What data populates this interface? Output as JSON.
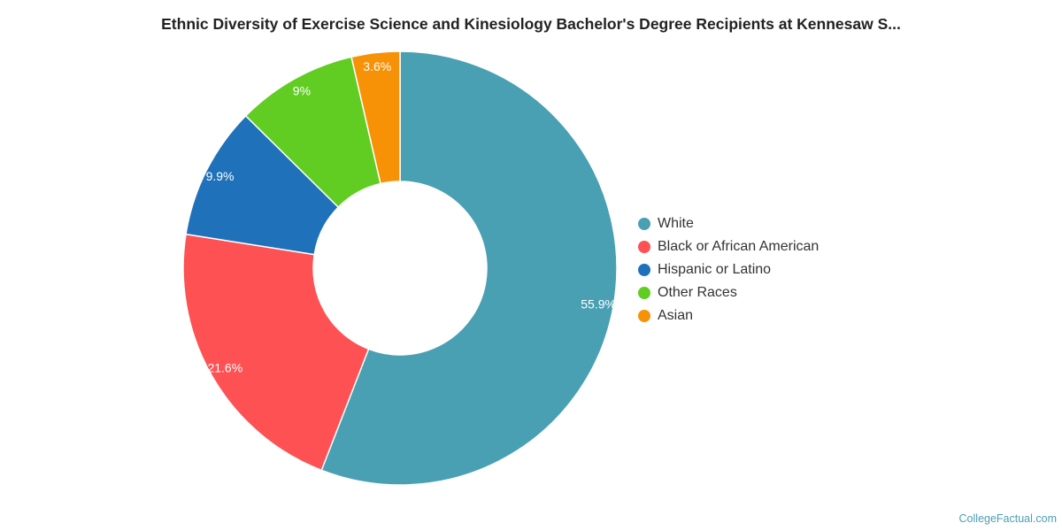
{
  "chart_data": {
    "type": "pie",
    "variant": "donut",
    "title": "Ethnic Diversity of Exercise Science and Kinesiology Bachelor's Degree Recipients at Kennesaw S...",
    "slices": [
      {
        "label": "White",
        "value": 55.9,
        "display": "55.9%",
        "color": "#4aa0b3"
      },
      {
        "label": "Black or African American",
        "value": 21.6,
        "display": "21.6%",
        "color": "#fd5154"
      },
      {
        "label": "Hispanic or Latino",
        "value": 9.9,
        "display": "9.9%",
        "color": "#1f72b9"
      },
      {
        "label": "Other Races",
        "value": 9.0,
        "display": "9%",
        "color": "#61cd23"
      },
      {
        "label": "Asian",
        "value": 3.6,
        "display": "3.6%",
        "color": "#f79207"
      }
    ],
    "legend_position": "right"
  },
  "credit": "CollegeFactual.com"
}
